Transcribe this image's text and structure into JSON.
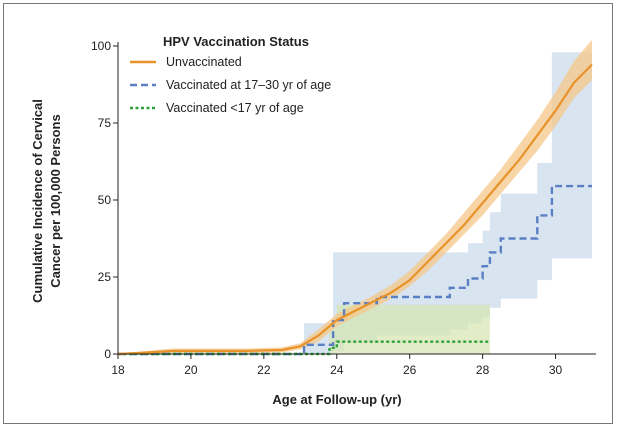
{
  "chart_data": {
    "type": "line",
    "xlabel": "Age at Follow-up (yr)",
    "ylabel_lines": [
      "Cumulative Incidence of Cervical",
      "Cancer per 100,000 Persons"
    ],
    "xlim": [
      18,
      31
    ],
    "ylim": [
      0,
      100
    ],
    "xticks": [
      18,
      20,
      22,
      24,
      26,
      28,
      30
    ],
    "yticks": [
      0,
      25,
      50,
      75,
      100
    ],
    "grid": false,
    "legend": {
      "title": "HPV Vaccination Status",
      "placement": "top-left"
    },
    "series": [
      {
        "name": "Unvaccinated",
        "style": "solid",
        "color": "#e8922a",
        "band_color": "#f5c78a",
        "x": [
          18,
          18.8,
          19.5,
          20.5,
          21.5,
          22.5,
          23.0,
          23.5,
          24.0,
          24.5,
          25.0,
          25.5,
          26.0,
          26.5,
          27.0,
          27.5,
          28.0,
          28.5,
          29.0,
          29.5,
          30.0,
          30.5,
          31.0
        ],
        "y": [
          0,
          0.5,
          1,
          1,
          1,
          1.3,
          2.5,
          6,
          11,
          14,
          17,
          20,
          24,
          30,
          36,
          42,
          49,
          56,
          63,
          71,
          79,
          88,
          94
        ],
        "lower": [
          0,
          0,
          0.3,
          0.3,
          0.3,
          0.5,
          1.5,
          4,
          9,
          12,
          15,
          18,
          22,
          27,
          33,
          39,
          45,
          52,
          59,
          66,
          74,
          83,
          89
        ],
        "upper": [
          0,
          1,
          1.8,
          1.8,
          1.8,
          2.2,
          3.5,
          8,
          13,
          16,
          19,
          22.5,
          27,
          33,
          39,
          46,
          53,
          60,
          68,
          76,
          85,
          95,
          102
        ]
      },
      {
        "name": "Vaccinated at 17–30 yr of age",
        "style": "dashed",
        "color": "#5b7fc4",
        "band_color": "#c7d9ea",
        "x": [
          18,
          22.6,
          23.1,
          23.9,
          24.2,
          24.8,
          25.1,
          25.5,
          26.0,
          26.4,
          27.1,
          27.6,
          28.0,
          28.2,
          28.5,
          29.5,
          29.9,
          31.0
        ],
        "y": [
          0,
          0,
          3,
          11,
          16.5,
          16.5,
          18.5,
          18.5,
          18.5,
          18.5,
          21.5,
          24.5,
          28.5,
          33,
          37.5,
          45,
          54.5,
          54.5
        ],
        "lower": [
          0,
          0,
          0,
          1,
          4,
          4,
          6,
          6,
          6,
          6,
          8,
          10,
          12,
          15,
          18,
          24,
          31,
          31
        ],
        "upper": [
          0,
          0,
          10,
          33,
          33,
          33,
          33,
          33,
          33,
          33,
          33,
          36,
          40,
          46,
          52,
          62,
          98,
          98
        ]
      },
      {
        "name": "Vaccinated <17 yr of age",
        "style": "dotted",
        "color": "#2ea13a",
        "band_color": "#d6e6b0",
        "x": [
          18,
          23.5,
          23.8,
          24.0,
          28.2
        ],
        "y": [
          0,
          0,
          2,
          4,
          4
        ],
        "lower": [
          0,
          0,
          0,
          0,
          0
        ],
        "upper": [
          0,
          0,
          10,
          16,
          16
        ]
      }
    ]
  }
}
